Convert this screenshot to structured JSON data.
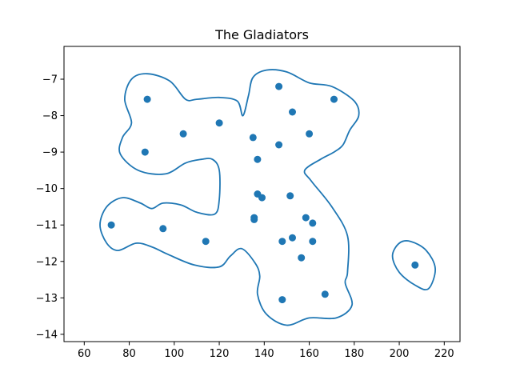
{
  "chart_data": {
    "type": "scatter",
    "title": "The Gladiators",
    "xlabel": "",
    "ylabel": "",
    "xlim": [
      51,
      227
    ],
    "ylim": [
      -14.2,
      -6.1
    ],
    "x_ticks": [
      60,
      80,
      100,
      120,
      140,
      160,
      180,
      200,
      220
    ],
    "y_ticks": [
      -7,
      -8,
      -9,
      -10,
      -11,
      -12,
      -13,
      -14
    ],
    "grid": false,
    "point_color": "#1f77b4",
    "contour_color": "#1f77b4",
    "points": [
      {
        "x": 88,
        "y": -7.55
      },
      {
        "x": 104,
        "y": -8.5
      },
      {
        "x": 120,
        "y": -8.2
      },
      {
        "x": 87,
        "y": -9.0
      },
      {
        "x": 72,
        "y": -11.0
      },
      {
        "x": 95,
        "y": -11.1
      },
      {
        "x": 114,
        "y": -11.45
      },
      {
        "x": 135,
        "y": -8.6
      },
      {
        "x": 137,
        "y": -9.2
      },
      {
        "x": 146.5,
        "y": -7.2
      },
      {
        "x": 146.5,
        "y": -8.8
      },
      {
        "x": 152.5,
        "y": -7.9
      },
      {
        "x": 160,
        "y": -8.5
      },
      {
        "x": 171,
        "y": -7.55
      },
      {
        "x": 137,
        "y": -10.15
      },
      {
        "x": 139,
        "y": -10.25
      },
      {
        "x": 151.5,
        "y": -10.2
      },
      {
        "x": 135.5,
        "y": -10.8
      },
      {
        "x": 135.5,
        "y": -10.85
      },
      {
        "x": 158.5,
        "y": -10.8
      },
      {
        "x": 161.5,
        "y": -10.95
      },
      {
        "x": 148,
        "y": -11.45
      },
      {
        "x": 152.5,
        "y": -11.35
      },
      {
        "x": 161.5,
        "y": -11.45
      },
      {
        "x": 156.5,
        "y": -11.9
      },
      {
        "x": 148,
        "y": -13.05
      },
      {
        "x": 167,
        "y": -12.9
      },
      {
        "x": 207,
        "y": -12.1
      }
    ],
    "contours": [
      [
        [
          88,
          -6.85
        ],
        [
          98,
          -7.05
        ],
        [
          105,
          -7.55
        ],
        [
          110,
          -7.55
        ],
        [
          120,
          -7.5
        ],
        [
          128,
          -7.6
        ],
        [
          130.5,
          -8.0
        ],
        [
          133,
          -7.45
        ],
        [
          135,
          -6.95
        ],
        [
          141,
          -6.75
        ],
        [
          150,
          -6.8
        ],
        [
          160,
          -7.1
        ],
        [
          170,
          -7.2
        ],
        [
          180,
          -7.6
        ],
        [
          182,
          -8.0
        ],
        [
          178,
          -8.4
        ],
        [
          175,
          -8.8
        ],
        [
          171,
          -9.0
        ],
        [
          165,
          -9.2
        ],
        [
          158,
          -9.5
        ],
        [
          161,
          -9.8
        ],
        [
          170,
          -10.5
        ],
        [
          177,
          -11.3
        ],
        [
          177,
          -12.3
        ],
        [
          176,
          -12.6
        ],
        [
          179,
          -13.2
        ],
        [
          172,
          -13.55
        ],
        [
          160,
          -13.55
        ],
        [
          150,
          -13.75
        ],
        [
          141,
          -13.45
        ],
        [
          137,
          -12.9
        ],
        [
          138,
          -12.4
        ],
        [
          136,
          -12.05
        ],
        [
          130,
          -11.65
        ],
        [
          125,
          -11.85
        ],
        [
          120,
          -12.15
        ],
        [
          109,
          -12.1
        ],
        [
          97,
          -11.8
        ],
        [
          90,
          -11.6
        ],
        [
          83,
          -11.5
        ],
        [
          75,
          -11.7
        ],
        [
          70,
          -11.5
        ],
        [
          67,
          -11.0
        ],
        [
          70,
          -10.5
        ],
        [
          77,
          -10.25
        ],
        [
          85,
          -10.4
        ],
        [
          90,
          -10.55
        ],
        [
          95,
          -10.4
        ],
        [
          103,
          -10.45
        ],
        [
          110,
          -10.65
        ],
        [
          118,
          -10.7
        ],
        [
          120,
          -10.3
        ],
        [
          120,
          -9.5
        ],
        [
          117,
          -9.2
        ],
        [
          112,
          -9.2
        ],
        [
          105,
          -9.3
        ],
        [
          96,
          -9.6
        ],
        [
          84,
          -9.5
        ],
        [
          76,
          -9.05
        ],
        [
          77,
          -8.6
        ],
        [
          81,
          -8.2
        ],
        [
          78,
          -7.55
        ],
        [
          81,
          -7.0
        ],
        [
          88,
          -6.85
        ]
      ],
      [
        [
          205,
          -11.45
        ],
        [
          212,
          -11.7
        ],
        [
          216,
          -12.2
        ],
        [
          213,
          -12.75
        ],
        [
          207,
          -12.65
        ],
        [
          200,
          -12.3
        ],
        [
          197,
          -11.85
        ],
        [
          200,
          -11.5
        ],
        [
          205,
          -11.45
        ]
      ]
    ]
  }
}
